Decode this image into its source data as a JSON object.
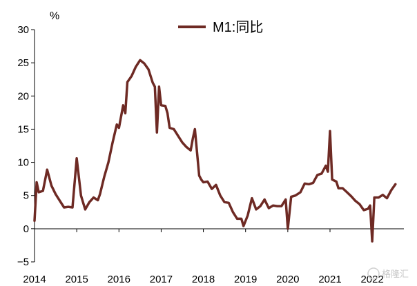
{
  "chart_data": {
    "type": "line",
    "title": "",
    "unit": "%",
    "xlabel": "",
    "ylabel": "",
    "ylim": [
      -5,
      30
    ],
    "yticks": [
      "30",
      "25",
      "20",
      "15",
      "10",
      "5",
      "0",
      "−5"
    ],
    "ytick_values": [
      30,
      25,
      20,
      15,
      10,
      5,
      0,
      -5
    ],
    "xticks": [
      "2014",
      "2015",
      "2016",
      "2017",
      "2018",
      "2019",
      "2020",
      "2021",
      "2022"
    ],
    "xtick_values": [
      2014,
      2015,
      2016,
      2017,
      2018,
      2019,
      2020,
      2021,
      2022
    ],
    "xlim": [
      2014,
      2022.75
    ],
    "grid": false,
    "legend_position": "top-center",
    "series": [
      {
        "name": "M1:同比",
        "color": "#6e2a24",
        "points": [
          [
            2014.0,
            1.2
          ],
          [
            2014.05,
            7.0
          ],
          [
            2014.1,
            5.5
          ],
          [
            2014.2,
            5.7
          ],
          [
            2014.3,
            8.9
          ],
          [
            2014.4,
            6.5
          ],
          [
            2014.5,
            5.2
          ],
          [
            2014.6,
            4.2
          ],
          [
            2014.7,
            3.2
          ],
          [
            2014.8,
            3.3
          ],
          [
            2014.9,
            3.2
          ],
          [
            2015.0,
            10.6
          ],
          [
            2015.1,
            5.0
          ],
          [
            2015.2,
            2.9
          ],
          [
            2015.3,
            4.0
          ],
          [
            2015.4,
            4.7
          ],
          [
            2015.5,
            4.3
          ],
          [
            2015.55,
            5.2
          ],
          [
            2015.65,
            7.8
          ],
          [
            2015.75,
            10.0
          ],
          [
            2015.85,
            13.0
          ],
          [
            2015.95,
            15.7
          ],
          [
            2016.0,
            15.2
          ],
          [
            2016.1,
            18.6
          ],
          [
            2016.15,
            17.4
          ],
          [
            2016.2,
            22.1
          ],
          [
            2016.3,
            23.0
          ],
          [
            2016.4,
            24.4
          ],
          [
            2016.5,
            25.4
          ],
          [
            2016.6,
            24.9
          ],
          [
            2016.7,
            24.0
          ],
          [
            2016.8,
            22.0
          ],
          [
            2016.85,
            21.4
          ],
          [
            2016.9,
            14.5
          ],
          [
            2016.95,
            21.4
          ],
          [
            2017.0,
            18.6
          ],
          [
            2017.1,
            18.5
          ],
          [
            2017.15,
            17.4
          ],
          [
            2017.2,
            15.2
          ],
          [
            2017.3,
            15.0
          ],
          [
            2017.4,
            14.0
          ],
          [
            2017.5,
            13.0
          ],
          [
            2017.6,
            12.3
          ],
          [
            2017.7,
            11.8
          ],
          [
            2017.75,
            13.6
          ],
          [
            2017.8,
            15.0
          ],
          [
            2017.85,
            11.5
          ],
          [
            2017.9,
            8.0
          ],
          [
            2017.95,
            7.4
          ],
          [
            2018.0,
            7.0
          ],
          [
            2018.1,
            7.1
          ],
          [
            2018.2,
            6.0
          ],
          [
            2018.3,
            6.6
          ],
          [
            2018.4,
            5.0
          ],
          [
            2018.5,
            4.0
          ],
          [
            2018.6,
            3.9
          ],
          [
            2018.7,
            2.5
          ],
          [
            2018.8,
            1.5
          ],
          [
            2018.9,
            1.5
          ],
          [
            2018.95,
            0.4
          ],
          [
            2019.05,
            2.0
          ],
          [
            2019.15,
            4.6
          ],
          [
            2019.25,
            2.9
          ],
          [
            2019.35,
            3.4
          ],
          [
            2019.45,
            4.4
          ],
          [
            2019.55,
            3.1
          ],
          [
            2019.65,
            3.5
          ],
          [
            2019.75,
            3.4
          ],
          [
            2019.85,
            3.4
          ],
          [
            2019.95,
            4.4
          ],
          [
            2020.0,
            0.0
          ],
          [
            2020.08,
            4.8
          ],
          [
            2020.18,
            5.0
          ],
          [
            2020.3,
            5.5
          ],
          [
            2020.4,
            6.8
          ],
          [
            2020.5,
            6.7
          ],
          [
            2020.6,
            6.9
          ],
          [
            2020.7,
            8.1
          ],
          [
            2020.8,
            8.3
          ],
          [
            2020.9,
            9.5
          ],
          [
            2020.95,
            8.6
          ],
          [
            2021.0,
            14.7
          ],
          [
            2021.05,
            7.4
          ],
          [
            2021.15,
            7.1
          ],
          [
            2021.2,
            6.1
          ],
          [
            2021.3,
            6.1
          ],
          [
            2021.4,
            5.5
          ],
          [
            2021.5,
            4.9
          ],
          [
            2021.6,
            4.2
          ],
          [
            2021.7,
            3.7
          ],
          [
            2021.8,
            2.8
          ],
          [
            2021.9,
            3.0
          ],
          [
            2021.95,
            3.5
          ],
          [
            2022.0,
            -1.9
          ],
          [
            2022.05,
            4.7
          ],
          [
            2022.15,
            4.7
          ],
          [
            2022.25,
            5.1
          ],
          [
            2022.35,
            4.6
          ],
          [
            2022.45,
            5.8
          ],
          [
            2022.55,
            6.7
          ]
        ]
      }
    ]
  },
  "watermark": {
    "text": "格隆汇"
  }
}
